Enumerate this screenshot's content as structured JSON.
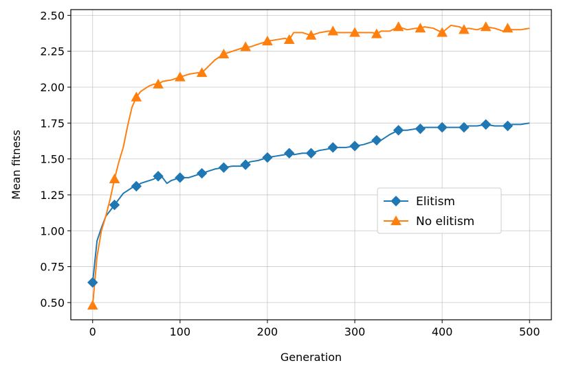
{
  "chart_data": {
    "type": "line",
    "xlabel": "Generation",
    "ylabel": "Mean fitness",
    "xlim": [
      -25,
      525
    ],
    "ylim": [
      0.38,
      2.54
    ],
    "xticks": [
      "0",
      "100",
      "200",
      "300",
      "400",
      "500"
    ],
    "yticks": [
      "0.50",
      "0.75",
      "1.00",
      "1.25",
      "1.50",
      "1.75",
      "2.00",
      "2.25",
      "2.50"
    ],
    "grid": true,
    "legend_position": "center-right",
    "series": [
      {
        "name": "Elitism",
        "color": "#1f77b4",
        "marker": "diamond",
        "x": [
          0,
          5,
          10,
          15,
          20,
          25,
          30,
          35,
          40,
          45,
          50,
          55,
          60,
          65,
          70,
          75,
          80,
          85,
          90,
          95,
          100,
          110,
          120,
          125,
          130,
          140,
          150,
          160,
          170,
          175,
          180,
          190,
          200,
          210,
          220,
          225,
          230,
          240,
          250,
          260,
          270,
          275,
          280,
          290,
          300,
          310,
          320,
          325,
          330,
          340,
          350,
          360,
          370,
          375,
          380,
          390,
          400,
          410,
          420,
          425,
          430,
          440,
          450,
          460,
          470,
          475,
          480,
          490,
          500
        ],
        "y": [
          0.64,
          0.93,
          1.02,
          1.1,
          1.14,
          1.18,
          1.22,
          1.26,
          1.28,
          1.3,
          1.31,
          1.33,
          1.34,
          1.35,
          1.36,
          1.38,
          1.37,
          1.33,
          1.35,
          1.36,
          1.37,
          1.37,
          1.39,
          1.4,
          1.41,
          1.43,
          1.44,
          1.45,
          1.45,
          1.46,
          1.48,
          1.49,
          1.51,
          1.52,
          1.53,
          1.54,
          1.53,
          1.54,
          1.54,
          1.56,
          1.57,
          1.58,
          1.58,
          1.58,
          1.59,
          1.6,
          1.62,
          1.63,
          1.63,
          1.67,
          1.7,
          1.7,
          1.71,
          1.71,
          1.72,
          1.72,
          1.72,
          1.72,
          1.72,
          1.72,
          1.73,
          1.73,
          1.74,
          1.73,
          1.73,
          1.73,
          1.74,
          1.74,
          1.75
        ],
        "marker_x": [
          0,
          25,
          50,
          75,
          100,
          125,
          150,
          175,
          200,
          225,
          250,
          275,
          300,
          325,
          350,
          375,
          400,
          425,
          450,
          475
        ]
      },
      {
        "name": "No elitism",
        "color": "#ff7f0e",
        "marker": "triangle",
        "x": [
          0,
          5,
          10,
          15,
          20,
          25,
          30,
          35,
          40,
          45,
          50,
          55,
          60,
          65,
          70,
          75,
          80,
          90,
          100,
          110,
          120,
          125,
          130,
          140,
          150,
          160,
          170,
          175,
          180,
          190,
          200,
          210,
          220,
          225,
          230,
          240,
          250,
          260,
          270,
          275,
          280,
          290,
          300,
          310,
          320,
          325,
          330,
          340,
          350,
          360,
          370,
          375,
          380,
          390,
          400,
          410,
          420,
          425,
          430,
          440,
          450,
          460,
          470,
          475,
          480,
          490,
          500
        ],
        "y": [
          0.48,
          0.82,
          1.0,
          1.1,
          1.22,
          1.36,
          1.48,
          1.58,
          1.73,
          1.86,
          1.93,
          1.97,
          1.99,
          2.01,
          2.02,
          2.02,
          2.04,
          2.05,
          2.07,
          2.09,
          2.1,
          2.1,
          2.13,
          2.19,
          2.23,
          2.25,
          2.27,
          2.28,
          2.28,
          2.3,
          2.32,
          2.33,
          2.34,
          2.33,
          2.38,
          2.38,
          2.36,
          2.38,
          2.39,
          2.39,
          2.38,
          2.38,
          2.38,
          2.38,
          2.38,
          2.37,
          2.39,
          2.39,
          2.42,
          2.4,
          2.41,
          2.41,
          2.42,
          2.41,
          2.38,
          2.43,
          2.42,
          2.4,
          2.41,
          2.4,
          2.42,
          2.41,
          2.39,
          2.41,
          2.4,
          2.4,
          2.41
        ],
        "marker_x": [
          0,
          25,
          50,
          75,
          100,
          125,
          150,
          175,
          200,
          225,
          250,
          275,
          300,
          325,
          350,
          375,
          400,
          425,
          450,
          475
        ]
      }
    ]
  }
}
